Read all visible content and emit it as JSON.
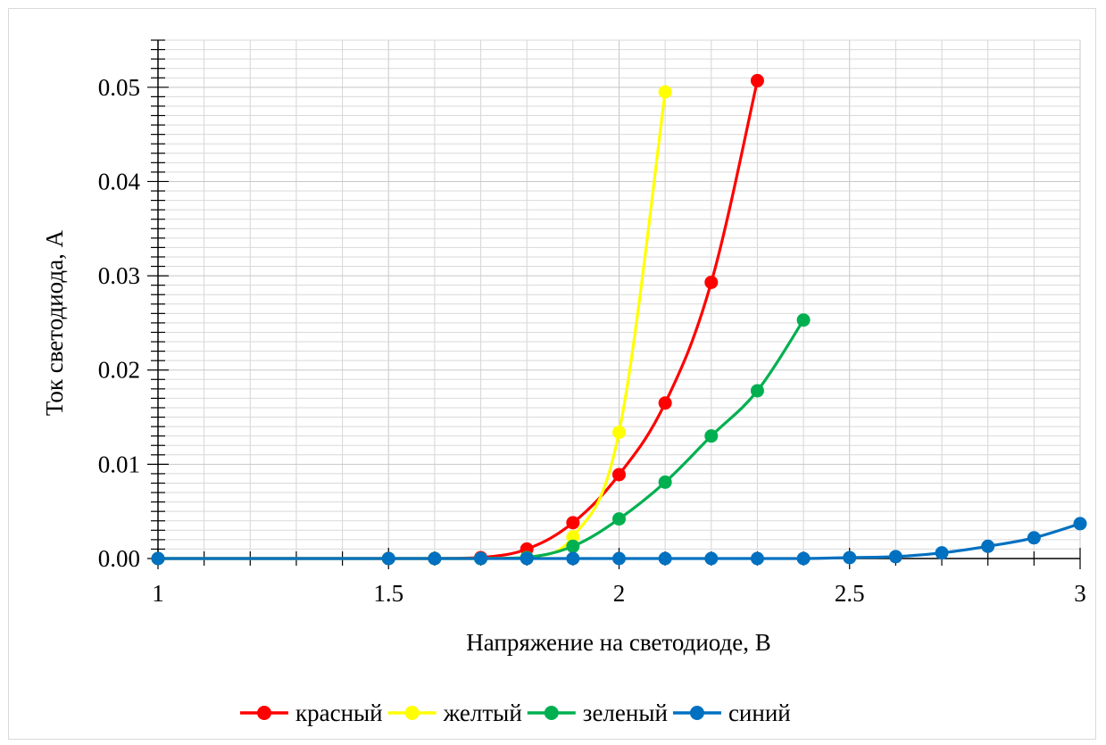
{
  "chart_data": {
    "type": "line",
    "title": "",
    "xlabel": "Напряжение на светодиоде, В",
    "ylabel": "Ток светодиода, А",
    "xlim": [
      1,
      3
    ],
    "ylim": [
      0,
      0.055
    ],
    "x_ticks": [
      "1",
      "1.5",
      "2",
      "2.5",
      "3"
    ],
    "y_ticks": [
      "0.00",
      "0.01",
      "0.02",
      "0.03",
      "0.04",
      "0.05"
    ],
    "grid": true,
    "legend_position": "bottom",
    "series": [
      {
        "name": "красный",
        "color": "#ff0000",
        "x": [
          1.0,
          1.5,
          1.6,
          1.7,
          1.8,
          1.9,
          2.0,
          2.1,
          2.2,
          2.3
        ],
        "y": [
          0.0,
          0.0,
          0.0,
          0.0001,
          0.001,
          0.0038,
          0.0089,
          0.0165,
          0.0293,
          0.0507
        ]
      },
      {
        "name": "желтый",
        "color": "#ffff00",
        "x": [
          1.0,
          1.5,
          1.6,
          1.7,
          1.8,
          1.9,
          2.0,
          2.1
        ],
        "y": [
          0.0,
          0.0,
          0.0,
          0.0,
          0.0001,
          0.0023,
          0.0134,
          0.0495
        ]
      },
      {
        "name": "зеленый",
        "color": "#00b050",
        "x": [
          1.0,
          1.5,
          1.6,
          1.7,
          1.8,
          1.9,
          2.0,
          2.1,
          2.2,
          2.3,
          2.4
        ],
        "y": [
          0.0,
          0.0,
          0.0,
          0.0,
          0.0001,
          0.0013,
          0.0042,
          0.0081,
          0.013,
          0.0178,
          0.0253
        ]
      },
      {
        "name": "синий",
        "color": "#0070c0",
        "x": [
          1.0,
          1.5,
          1.6,
          1.7,
          1.8,
          1.9,
          2.0,
          2.1,
          2.2,
          2.3,
          2.4,
          2.5,
          2.6,
          2.7,
          2.8,
          2.9,
          3.0
        ],
        "y": [
          0.0,
          0.0,
          0.0,
          0.0,
          0.0,
          0.0,
          0.0,
          0.0,
          0.0,
          0.0,
          0.0,
          0.0001,
          0.0002,
          0.0006,
          0.0013,
          0.0022,
          0.0037
        ]
      }
    ]
  }
}
